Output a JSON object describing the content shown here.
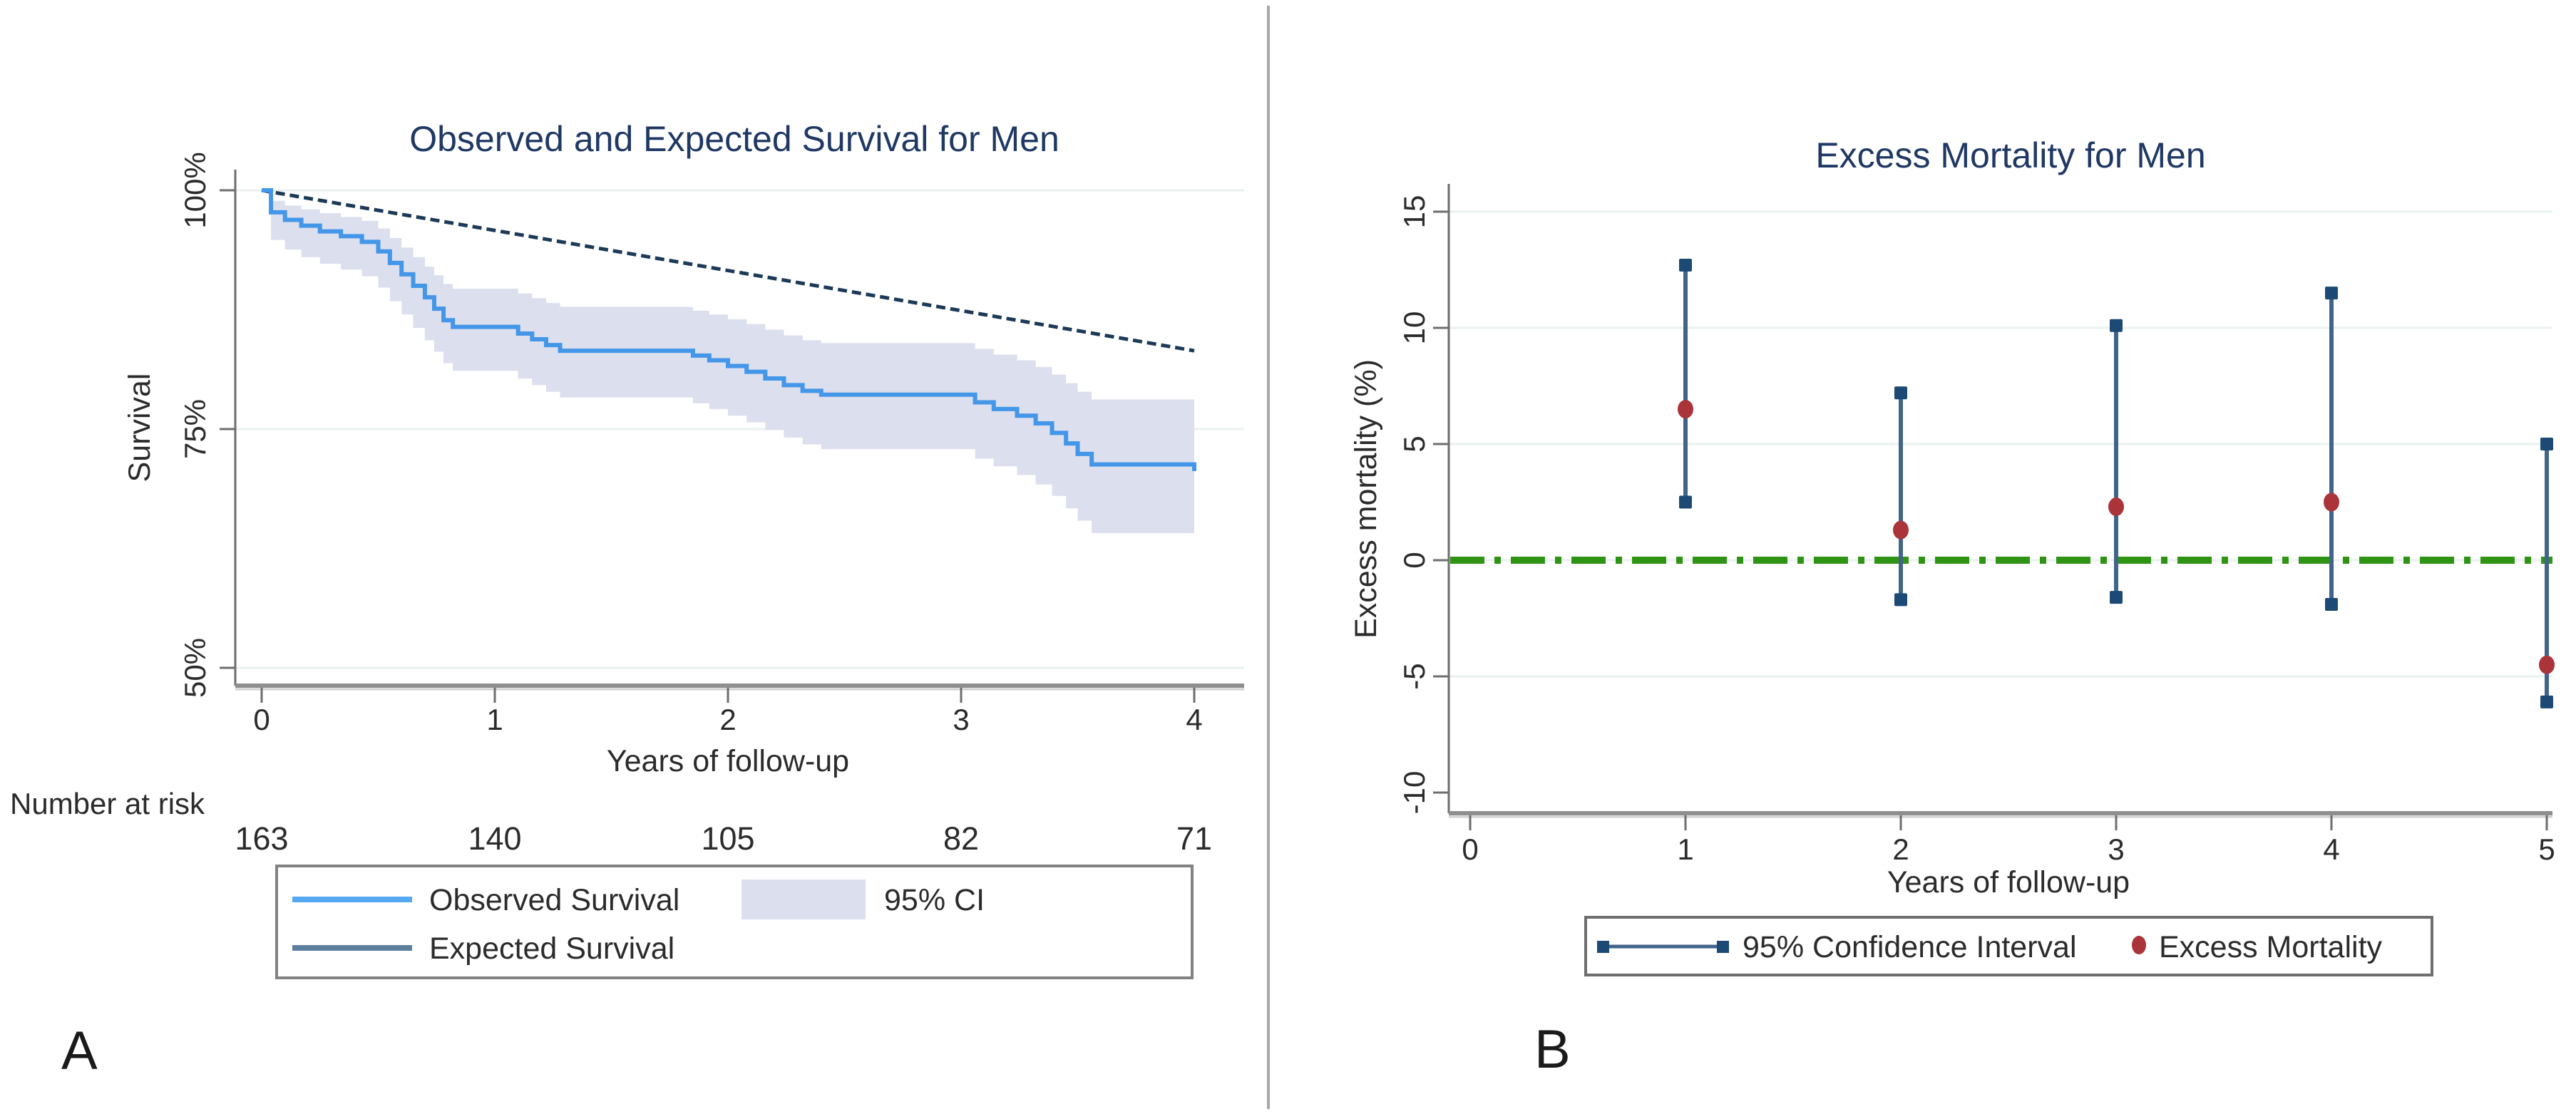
{
  "page": {
    "background": "#ffffff",
    "divider_color": "#a6a6a6",
    "panel_labels": {
      "a": "A",
      "b": "B"
    }
  },
  "chart_data": [
    {
      "type": "line",
      "panel": "A",
      "title": "Observed and Expected Survival for Men",
      "xlabel": "Years of follow-up",
      "ylabel": "Survival",
      "xlim": [
        0,
        4
      ],
      "ylim_pct": [
        50,
        100
      ],
      "grid": true,
      "legend_position": "bottom",
      "yticks": [
        {
          "value": 100,
          "label": "100%"
        },
        {
          "value": 75,
          "label": "75%"
        },
        {
          "value": 50,
          "label": "50%"
        }
      ],
      "xticks": [
        "0",
        "1",
        "2",
        "3",
        "4"
      ],
      "number_at_risk_label": "Number at risk",
      "number_at_risk": [
        "163",
        "140",
        "105",
        "82",
        "71"
      ],
      "legend": {
        "observed": "Observed Survival",
        "ci": "95% CI",
        "expected": "Expected Survival"
      },
      "colors": {
        "observed": "#4496e8",
        "observed_legend": "#55a9f2",
        "ci_fill": "#dcdfee",
        "expected": "#1c3a57",
        "expected_legend": "#5d7f9e",
        "grid": "#e9f1f0",
        "axis": "#6e6e6e",
        "axis_bottom": "#8f8f8f",
        "axis_bottom_light": "#d2d2d2",
        "text": "#2b2b2b",
        "title": "#1f3864",
        "legend_border": "#828282"
      },
      "series": {
        "observed_steps": [
          [
            0,
            100
          ],
          [
            0.04,
            97.7
          ],
          [
            0.1,
            96.9
          ],
          [
            0.17,
            96.3
          ],
          [
            0.25,
            95.7
          ],
          [
            0.34,
            95.2
          ],
          [
            0.43,
            94.6
          ],
          [
            0.5,
            93.6
          ],
          [
            0.55,
            92.4
          ],
          [
            0.6,
            91.2
          ],
          [
            0.65,
            90
          ],
          [
            0.7,
            88.8
          ],
          [
            0.74,
            87.6
          ],
          [
            0.78,
            86.4
          ],
          [
            0.82,
            85.7
          ],
          [
            1.1,
            85
          ],
          [
            1.16,
            84.4
          ],
          [
            1.22,
            83.8
          ],
          [
            1.28,
            83.2
          ],
          [
            1.85,
            82.7
          ],
          [
            1.92,
            82.2
          ],
          [
            2,
            81.6
          ],
          [
            2.08,
            81
          ],
          [
            2.16,
            80.3
          ],
          [
            2.24,
            79.6
          ],
          [
            2.32,
            79
          ],
          [
            2.4,
            78.6
          ],
          [
            3.06,
            77.8
          ],
          [
            3.14,
            77.1
          ],
          [
            3.24,
            76.4
          ],
          [
            3.32,
            75.6
          ],
          [
            3.39,
            74.6
          ],
          [
            3.45,
            73.5
          ],
          [
            3.5,
            72.4
          ],
          [
            3.56,
            71.3
          ],
          [
            4,
            70.6
          ]
        ],
        "expected_line": [
          [
            0,
            100
          ],
          [
            4,
            83.2
          ]
        ],
        "ci_upper_steps": [
          [
            0,
            100
          ],
          [
            0.04,
            98.9
          ],
          [
            0.1,
            98.4
          ],
          [
            0.17,
            98
          ],
          [
            0.25,
            97.6
          ],
          [
            0.34,
            97.2
          ],
          [
            0.43,
            96.8
          ],
          [
            0.5,
            96
          ],
          [
            0.55,
            95
          ],
          [
            0.6,
            94
          ],
          [
            0.65,
            93
          ],
          [
            0.7,
            92
          ],
          [
            0.74,
            91.1
          ],
          [
            0.78,
            90.2
          ],
          [
            0.82,
            89.7
          ],
          [
            1.1,
            89.2
          ],
          [
            1.16,
            88.7
          ],
          [
            1.22,
            88.2
          ],
          [
            1.28,
            87.8
          ],
          [
            1.85,
            87.4
          ],
          [
            1.92,
            87
          ],
          [
            2,
            86.5
          ],
          [
            2.08,
            86
          ],
          [
            2.16,
            85.4
          ],
          [
            2.24,
            84.8
          ],
          [
            2.32,
            84.3
          ],
          [
            2.4,
            84
          ],
          [
            3.06,
            83.4
          ],
          [
            3.14,
            82.8
          ],
          [
            3.24,
            82.2
          ],
          [
            3.32,
            81.5
          ],
          [
            3.39,
            80.7
          ],
          [
            3.45,
            79.8
          ],
          [
            3.5,
            78.9
          ],
          [
            3.56,
            78.1
          ],
          [
            4,
            78.1
          ]
        ],
        "ci_lower_steps": [
          [
            0,
            100
          ],
          [
            0.04,
            94.8
          ],
          [
            0.1,
            93.8
          ],
          [
            0.17,
            93
          ],
          [
            0.25,
            92.3
          ],
          [
            0.34,
            91.7
          ],
          [
            0.43,
            91
          ],
          [
            0.5,
            89.8
          ],
          [
            0.55,
            88.4
          ],
          [
            0.6,
            87
          ],
          [
            0.65,
            85.6
          ],
          [
            0.7,
            84.3
          ],
          [
            0.74,
            83.1
          ],
          [
            0.78,
            81.9
          ],
          [
            0.82,
            81.1
          ],
          [
            1.1,
            80.3
          ],
          [
            1.16,
            79.6
          ],
          [
            1.22,
            78.9
          ],
          [
            1.28,
            78.3
          ],
          [
            1.85,
            77.7
          ],
          [
            1.92,
            77.1
          ],
          [
            2,
            76.4
          ],
          [
            2.08,
            75.7
          ],
          [
            2.16,
            74.9
          ],
          [
            2.24,
            74.1
          ],
          [
            2.32,
            73.4
          ],
          [
            2.4,
            72.9
          ],
          [
            3.06,
            71.9
          ],
          [
            3.14,
            71.1
          ],
          [
            3.24,
            70.2
          ],
          [
            3.32,
            69.2
          ],
          [
            3.39,
            68
          ],
          [
            3.45,
            66.7
          ],
          [
            3.5,
            65.4
          ],
          [
            3.56,
            64.1
          ],
          [
            4,
            62.8
          ]
        ]
      }
    },
    {
      "type": "scatter",
      "panel": "B",
      "title": "Excess Mortality for Men",
      "xlabel": "Years of follow-up",
      "ylabel": "Excess mortality (%)",
      "xlim": [
        0,
        5
      ],
      "ylim": [
        -10,
        15
      ],
      "grid": true,
      "legend_position": "bottom",
      "yticks": [
        "15",
        "10",
        "5",
        "0",
        "-5",
        "-10"
      ],
      "ytick_values": [
        15,
        10,
        5,
        0,
        -5,
        -10
      ],
      "gridline_values": [
        15,
        10,
        5,
        0,
        -5
      ],
      "zero_line_value": 0,
      "xticks": [
        "0",
        "1",
        "2",
        "3",
        "4",
        "5"
      ],
      "legend": {
        "ci": "95% Confidence Interval",
        "excess": "Excess Mortality"
      },
      "colors": {
        "ci_line": "#41648a",
        "marker_square": "#1c4a74",
        "marker_dot": "#aa3439",
        "zero_line": "#2f9414",
        "grid": "#e9f1f0",
        "axis": "#6e6e6e",
        "axis_bottom": "#8f8f8f",
        "axis_bottom_light": "#d2d2d2",
        "text": "#2b2b2b",
        "title": "#1f3864",
        "legend_border": "#6e6e6e"
      },
      "points": [
        {
          "x": 1,
          "estimate": 6.5,
          "ci_low": 2.5,
          "ci_high": 12.7
        },
        {
          "x": 2,
          "estimate": 1.3,
          "ci_low": -1.7,
          "ci_high": 7.2
        },
        {
          "x": 3,
          "estimate": 2.3,
          "ci_low": -1.6,
          "ci_high": 10.1
        },
        {
          "x": 4,
          "estimate": 2.5,
          "ci_low": -1.9,
          "ci_high": 11.5
        },
        {
          "x": 5,
          "estimate": -4.5,
          "ci_low": -6.1,
          "ci_high": 5.0
        }
      ]
    }
  ]
}
